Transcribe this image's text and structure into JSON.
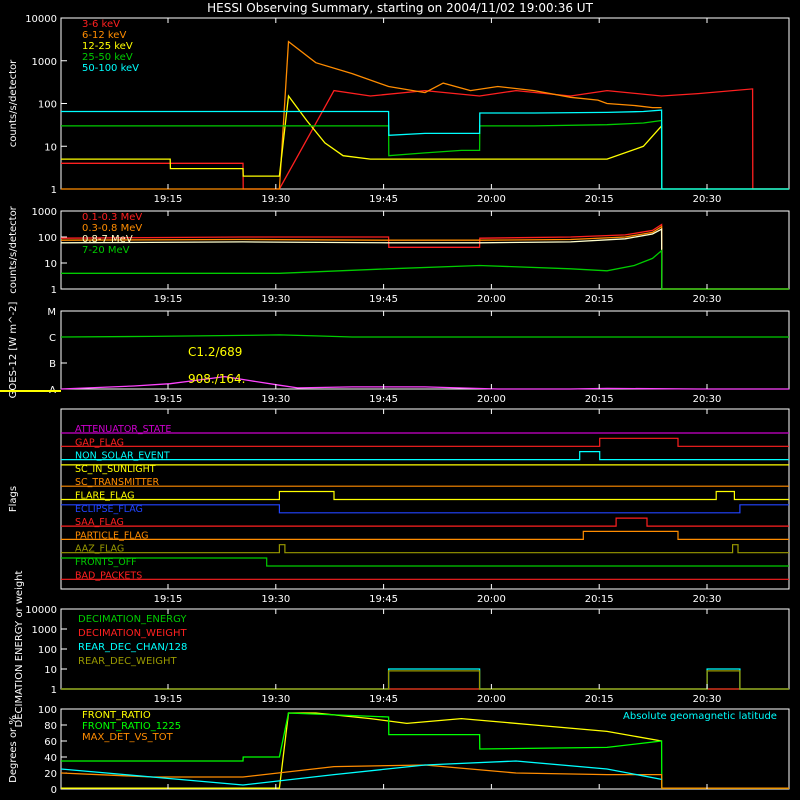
{
  "title": "HESSI Observing Summary, starting on 2004/11/02 19:00:36 UT",
  "time_ticks": [
    "19:15",
    "19:30",
    "19:45",
    "20:00",
    "20:15",
    "20:30"
  ],
  "chart_data": [
    {
      "type": "line",
      "panel": "count-rates-front",
      "ylabel": "counts/s/detector",
      "y_scale": "log",
      "ylim": [
        1,
        10000
      ],
      "ytick_labels": [
        "1",
        "10",
        "100",
        "1000",
        "10000"
      ],
      "x_unit": "minutes after 19:00:36 UT",
      "xlim": [
        0,
        40
      ],
      "legend_position": "top-left",
      "series": [
        {
          "name": "3-6 keV",
          "color": "#ff2020",
          "x": [
            0,
            10,
            10.01,
            12,
            15,
            17,
            20,
            23,
            25,
            28,
            30,
            33,
            35,
            38,
            38.01,
            39.5,
            40
          ],
          "y": [
            4,
            4,
            1,
            1,
            200,
            150,
            200,
            150,
            200,
            150,
            200,
            150,
            170,
            220,
            1,
            1,
            1
          ]
        },
        {
          "name": "6-12 keV",
          "color": "#ff8c00",
          "x": [
            0,
            12,
            12.5,
            14,
            16,
            18,
            20,
            21,
            22.5,
            24,
            26,
            28,
            29.5,
            30,
            31.5,
            32.5,
            33
          ],
          "y": [
            1,
            1,
            2800,
            900,
            500,
            250,
            180,
            300,
            200,
            250,
            200,
            140,
            120,
            100,
            90,
            80,
            80
          ]
        },
        {
          "name": "12-25 keV",
          "color": "#ffff00",
          "x": [
            0,
            6,
            6.01,
            10,
            10.01,
            12,
            12.5,
            13.5,
            14.5,
            15.5,
            17,
            20,
            30,
            32,
            33,
            33.01,
            40
          ],
          "y": [
            5,
            5,
            3,
            3,
            2,
            2,
            150,
            40,
            12,
            6,
            5,
            5,
            5,
            10,
            30,
            1,
            1
          ]
        },
        {
          "name": "25-50 keV",
          "color": "#00cc00",
          "x": [
            0,
            12,
            14,
            17,
            18,
            18.01,
            20,
            22,
            23,
            23.01,
            26,
            30,
            32,
            33,
            33.01,
            40
          ],
          "y": [
            30,
            30,
            30,
            30,
            30,
            6,
            7,
            8,
            8,
            30,
            30,
            32,
            35,
            40,
            1,
            1
          ]
        },
        {
          "name": "50-100 keV",
          "color": "#00ffff",
          "x": [
            0,
            12,
            14,
            17,
            18,
            18.01,
            20,
            23,
            23.01,
            26,
            30,
            32,
            33,
            33.01,
            40
          ],
          "y": [
            65,
            65,
            65,
            65,
            65,
            18,
            20,
            20,
            60,
            60,
            62,
            65,
            70,
            1,
            1
          ]
        }
      ]
    },
    {
      "type": "line",
      "panel": "count-rates-rear",
      "ylabel": "counts/s/detector",
      "y_scale": "log",
      "ylim": [
        1,
        1000
      ],
      "ytick_labels": [
        "1",
        "10",
        "100",
        "1000"
      ],
      "x_unit": "minutes after 19:00:36 UT",
      "xlim": [
        0,
        40
      ],
      "legend_position": "top-left",
      "series": [
        {
          "name": "0.1-0.3 MeV",
          "color": "#ff2020",
          "x": [
            0,
            10,
            18,
            18.01,
            23,
            23.01,
            28,
            31,
            32.5,
            33,
            33.01,
            40
          ],
          "y": [
            90,
            100,
            100,
            40,
            40,
            90,
            100,
            120,
            180,
            300,
            1,
            1
          ]
        },
        {
          "name": "0.3-0.8 MeV",
          "color": "#ff8c00",
          "x": [
            0,
            10,
            18,
            23,
            28,
            31,
            32.5,
            33,
            33.01,
            40
          ],
          "y": [
            75,
            80,
            75,
            75,
            80,
            100,
            150,
            250,
            1,
            1
          ]
        },
        {
          "name": "0.8-7 MeV",
          "color": "#ffffcc",
          "x": [
            0,
            10,
            18,
            23,
            28,
            31,
            32.5,
            33,
            33.01,
            40
          ],
          "y": [
            60,
            65,
            60,
            60,
            65,
            85,
            130,
            200,
            1,
            1
          ]
        },
        {
          "name": "7-20 MeV",
          "color": "#00cc00",
          "x": [
            0,
            6,
            12,
            18,
            23,
            28,
            30,
            31.5,
            32.5,
            33,
            33.01,
            40
          ],
          "y": [
            4,
            4,
            4,
            6,
            8,
            6,
            5,
            8,
            15,
            30,
            1,
            1
          ]
        }
      ]
    },
    {
      "type": "line",
      "panel": "goes-flux",
      "ylabel": "GOES-12 [W m^-2]",
      "y_scale": "log",
      "ytick_labels": [
        "A",
        "B",
        "C",
        "M"
      ],
      "x_unit": "minutes after 19:00:36 UT",
      "xlim": [
        0,
        40
      ],
      "annotations": [
        "C1.2/689",
        "908./164."
      ],
      "series": [
        {
          "name": "GOES long",
          "color": "#00cc00",
          "x": [
            0,
            5,
            10,
            12,
            14,
            16,
            20,
            25,
            30,
            35,
            40
          ],
          "y": [
            1e-06,
            1.05e-06,
            1.15e-06,
            1.2e-06,
            1.1e-06,
            1e-06,
            1e-06,
            1e-06,
            1e-06,
            1e-06,
            1e-06
          ]
        },
        {
          "name": "GOES short",
          "color": "#ff44ff",
          "x": [
            0,
            4,
            6,
            9,
            11,
            12,
            13,
            16,
            20,
            24,
            28,
            30,
            35,
            40
          ],
          "y": [
            1e-08,
            1.3e-08,
            1.6e-08,
            3e-08,
            1.8e-08,
            1.4e-08,
            1.1e-08,
            1.2e-08,
            1.2e-08,
            1e-08,
            1e-08,
            1.05e-08,
            1e-08,
            1e-08
          ]
        }
      ]
    },
    {
      "type": "line",
      "panel": "flags",
      "ylabel": "Flags",
      "x_unit": "minutes after 19:00:36 UT",
      "xlim": [
        0,
        40
      ],
      "series": [
        {
          "name": "ATTENUATOR_STATE",
          "color": "#cc00cc",
          "x": [
            0,
            40
          ],
          "y": [
            0,
            0
          ]
        },
        {
          "name": "GAP_FLAG",
          "color": "#ff2020",
          "x": [
            0,
            29.6,
            29.6,
            33.9,
            33.9,
            40
          ],
          "y": [
            0,
            0,
            1,
            1,
            0,
            0
          ]
        },
        {
          "name": "NON_SOLAR_EVENT",
          "color": "#00ffff",
          "x": [
            0,
            28.5,
            28.5,
            29.6,
            29.6,
            40
          ],
          "y": [
            0,
            0,
            1,
            1,
            0,
            0
          ]
        },
        {
          "name": "SC_IN_SUNLIGHT",
          "color": "#ffff00",
          "x": [
            0,
            2,
            2,
            40
          ],
          "y": [
            1,
            1,
            1,
            1
          ]
        },
        {
          "name": "SC_TRANSMITTER",
          "color": "#ff8c00",
          "x": [
            0,
            40
          ],
          "y": [
            0,
            0
          ]
        },
        {
          "name": "FLARE_FLAG",
          "color": "#ffff00",
          "x": [
            0,
            12,
            12,
            15,
            15,
            36,
            36,
            37,
            37,
            40
          ],
          "y": [
            0,
            0,
            1,
            1,
            0,
            0,
            1,
            1,
            0,
            0
          ]
        },
        {
          "name": "ECLIPSE_FLAG",
          "color": "#2244ff",
          "x": [
            0,
            12,
            12,
            37.3,
            37.3,
            40
          ],
          "y": [
            1,
            1,
            0,
            0,
            1,
            1
          ]
        },
        {
          "name": "SAA_FLAG",
          "color": "#ff2020",
          "x": [
            0,
            30.5,
            30.5,
            32.2,
            32.2,
            40
          ],
          "y": [
            0,
            0,
            1,
            1,
            0,
            0
          ]
        },
        {
          "name": "PARTICLE_FLAG",
          "color": "#ff8c00",
          "x": [
            0,
            28.7,
            28.7,
            33.9,
            33.9,
            40
          ],
          "y": [
            0,
            0,
            1,
            1,
            0,
            0
          ]
        },
        {
          "name": "AAZ_FLAG",
          "color": "#999900",
          "x": [
            0,
            12,
            12,
            12.3,
            12.3,
            36.9,
            36.9,
            37.2,
            37.2,
            40
          ],
          "y": [
            0,
            0,
            1,
            1,
            0,
            0,
            1,
            1,
            0,
            0
          ]
        },
        {
          "name": "FRONTS_OFF",
          "color": "#00cc00",
          "x": [
            0,
            11.3,
            11.3,
            40
          ],
          "y": [
            1,
            1,
            0,
            0
          ]
        },
        {
          "name": "BAD_PACKETS",
          "color": "#ff2020",
          "x": [
            0,
            40
          ],
          "y": [
            0,
            0
          ]
        }
      ]
    },
    {
      "type": "line",
      "panel": "decimation",
      "ylabel": "DECIMATION ENERGY or weight",
      "y_scale": "log",
      "ylim": [
        1,
        10000
      ],
      "ytick_labels": [
        "1",
        "10",
        "100",
        "1000",
        "10000"
      ],
      "x_unit": "minutes after 19:00:36 UT",
      "xlim": [
        0,
        40
      ],
      "legend_position": "top-left",
      "series": [
        {
          "name": "DECIMATION_ENERGY",
          "color": "#00cc00",
          "x": [
            0,
            40
          ],
          "y": [
            1,
            1
          ]
        },
        {
          "name": "DECIMATION_WEIGHT",
          "color": "#ff2020",
          "x": [
            0,
            40
          ],
          "y": [
            1,
            1
          ]
        },
        {
          "name": "REAR_DEC_CHAN/128",
          "color": "#00ffff",
          "x": [
            0,
            18,
            18,
            23,
            23,
            35.5,
            35.5,
            37.3,
            37.3,
            40
          ],
          "y": [
            1,
            1,
            10,
            10,
            1,
            1,
            10,
            10,
            1,
            1
          ]
        },
        {
          "name": "REAR_DEC_WEIGHT",
          "color": "#999900",
          "x": [
            0,
            18,
            18,
            23,
            23,
            35.5,
            35.5,
            37.3,
            37.3,
            40
          ],
          "y": [
            1,
            1,
            8,
            8,
            1,
            1,
            8,
            8,
            1,
            1
          ]
        }
      ]
    },
    {
      "type": "line",
      "panel": "ratios",
      "ylabel": "Degrees or %",
      "ylim": [
        0,
        100
      ],
      "ytick_labels": [
        "0",
        "20",
        "40",
        "60",
        "80",
        "100"
      ],
      "x_unit": "minutes after 19:00:36 UT",
      "xlim": [
        0,
        40
      ],
      "legend_position": "top-left",
      "series": [
        {
          "name": "FRONT_RATIO",
          "color": "#ffff00",
          "x": [
            0,
            12,
            12.5,
            14,
            17,
            19,
            22,
            26,
            30,
            33
          ],
          "y": [
            1,
            1,
            95,
            95,
            88,
            82,
            88,
            80,
            72,
            60
          ]
        },
        {
          "name": "FRONT_RATIO_1225",
          "color": "#00ff00",
          "x": [
            0,
            10,
            10.01,
            12,
            12.5,
            18,
            18.01,
            23,
            23.01,
            30,
            33,
            33.01,
            40
          ],
          "y": [
            35,
            35,
            40,
            40,
            95,
            90,
            68,
            68,
            50,
            52,
            60,
            1,
            1
          ]
        },
        {
          "name": "MAX_DET_VS_TOT",
          "color": "#ff8c00",
          "x": [
            0,
            5,
            10,
            15,
            20,
            25,
            30,
            33,
            33.01,
            40
          ],
          "y": [
            20,
            15,
            15,
            28,
            30,
            20,
            18,
            18,
            1,
            1
          ]
        },
        {
          "name": "Absolute geomagnetic latitude",
          "color": "#00ffff",
          "x": [
            0,
            5,
            10,
            15,
            20,
            25,
            30,
            33
          ],
          "y": [
            25,
            15,
            5,
            18,
            30,
            35,
            25,
            12
          ]
        }
      ]
    }
  ]
}
